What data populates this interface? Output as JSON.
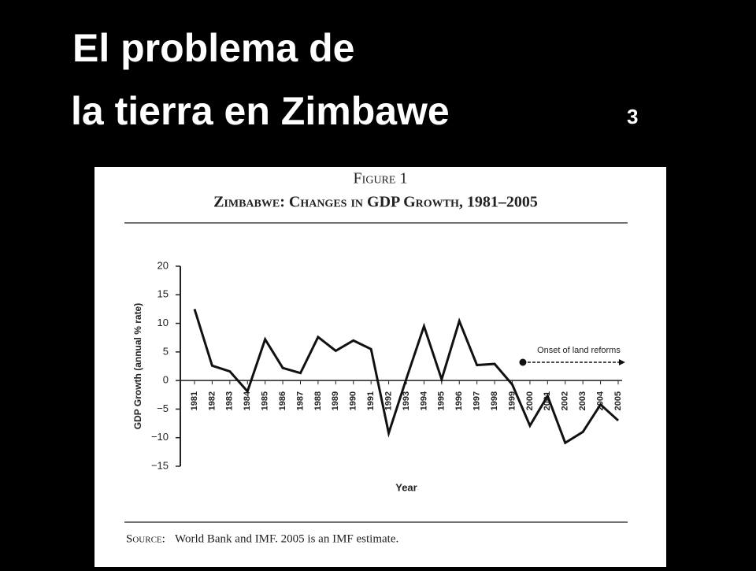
{
  "slide": {
    "title_line1": "El problema de",
    "title_line2": "la tierra en Zimbawe",
    "number": "3"
  },
  "chart_data": {
    "type": "line",
    "figure_label": "Figure 1",
    "title": "Zimbabwe: Changes in GDP Growth, 1981–2005",
    "y_label": "GDP Growth (annual % rate)",
    "x_label": "Year",
    "annotation": "Onset of land reforms",
    "source_label": "Source:",
    "source": "World Bank and IMF. 2005 is an IMF estimate.",
    "categories": [
      "1981",
      "1982",
      "1983",
      "1984",
      "1985",
      "1986",
      "1987",
      "1988",
      "1989",
      "1990",
      "1991",
      "1992",
      "1993",
      "1994",
      "1995",
      "1996",
      "1997",
      "1998",
      "1999",
      "2000",
      "2001",
      "2002",
      "2003",
      "2004",
      "2005"
    ],
    "values": [
      12.5,
      2.6,
      1.6,
      -1.9,
      7.2,
      2.2,
      1.3,
      7.6,
      5.2,
      7.0,
      5.5,
      -9.2,
      0.3,
      9.5,
      0.2,
      10.4,
      2.7,
      2.9,
      -0.7,
      -7.9,
      -2.7,
      -10.9,
      -9.0,
      -4.2,
      -7.0
    ],
    "color": "#111111",
    "ylim": [
      -15,
      20
    ],
    "yticks": [
      {
        "value": -15,
        "label": "−15"
      },
      {
        "value": -10,
        "label": "−10"
      },
      {
        "value": -5,
        "label": "−5"
      },
      0,
      5,
      10,
      15,
      20
    ],
    "grid": false
  }
}
